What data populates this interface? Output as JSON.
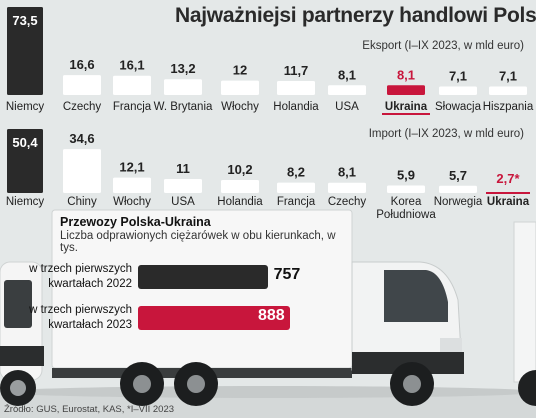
{
  "title": "Najważniejsi partnerzy handlowi Polski",
  "colors": {
    "dark": "#2a2a2a",
    "light": "#ffffff",
    "accent": "#c8163c",
    "background": "#e4e8e8"
  },
  "chart_data": [
    {
      "type": "bar",
      "subtitle": "Eksport (I–IX 2023, w mld euro)",
      "categories": [
        "Niemcy",
        "Czechy",
        "Francja",
        "W. Brytania",
        "Włochy",
        "Holandia",
        "USA",
        "Ukraina",
        "Słowacja",
        "Hiszpania"
      ],
      "values": [
        73.5,
        16.6,
        16.1,
        13.2,
        12,
        11.7,
        8.1,
        8.1,
        7.1,
        7.1
      ],
      "value_labels": [
        "73,5",
        "16,6",
        "16,1",
        "13,2",
        "12",
        "11,7",
        "8,1",
        "8,1",
        "7,1",
        "7,1"
      ],
      "highlight": "Ukraina",
      "ylim": [
        0,
        73.5
      ]
    },
    {
      "type": "bar",
      "subtitle": "Import (I–IX 2023, w mld euro)",
      "categories": [
        "Niemcy",
        "Chiny",
        "Włochy",
        "USA",
        "Holandia",
        "Francja",
        "Czechy",
        "Korea Południowa",
        "Norwegia",
        "Ukraina"
      ],
      "values": [
        50.4,
        34.6,
        12.1,
        11,
        10.2,
        8.2,
        8.1,
        5.9,
        5.7,
        2.7
      ],
      "value_labels": [
        "50,4",
        "34,6",
        "12,1",
        "11",
        "10,2",
        "8,2",
        "8,1",
        "5,9",
        "5,7",
        "2,7*"
      ],
      "highlight": "Ukraina",
      "ylim": [
        0,
        50.4
      ]
    },
    {
      "type": "bar",
      "title": "Przewozy Polska-Ukraina",
      "subtitle": "Liczba odprawionych ciężarówek w obu kierunkach, w tys.",
      "categories": [
        "w trzech pierwszych kwartałach 2022",
        "w trzech pierwszych kwartałach 2023"
      ],
      "values": [
        757,
        888
      ],
      "value_labels": [
        "757",
        "888"
      ]
    }
  ],
  "source": "Źródło: GUS, Eurostat, KAS, *I–VII 2023"
}
